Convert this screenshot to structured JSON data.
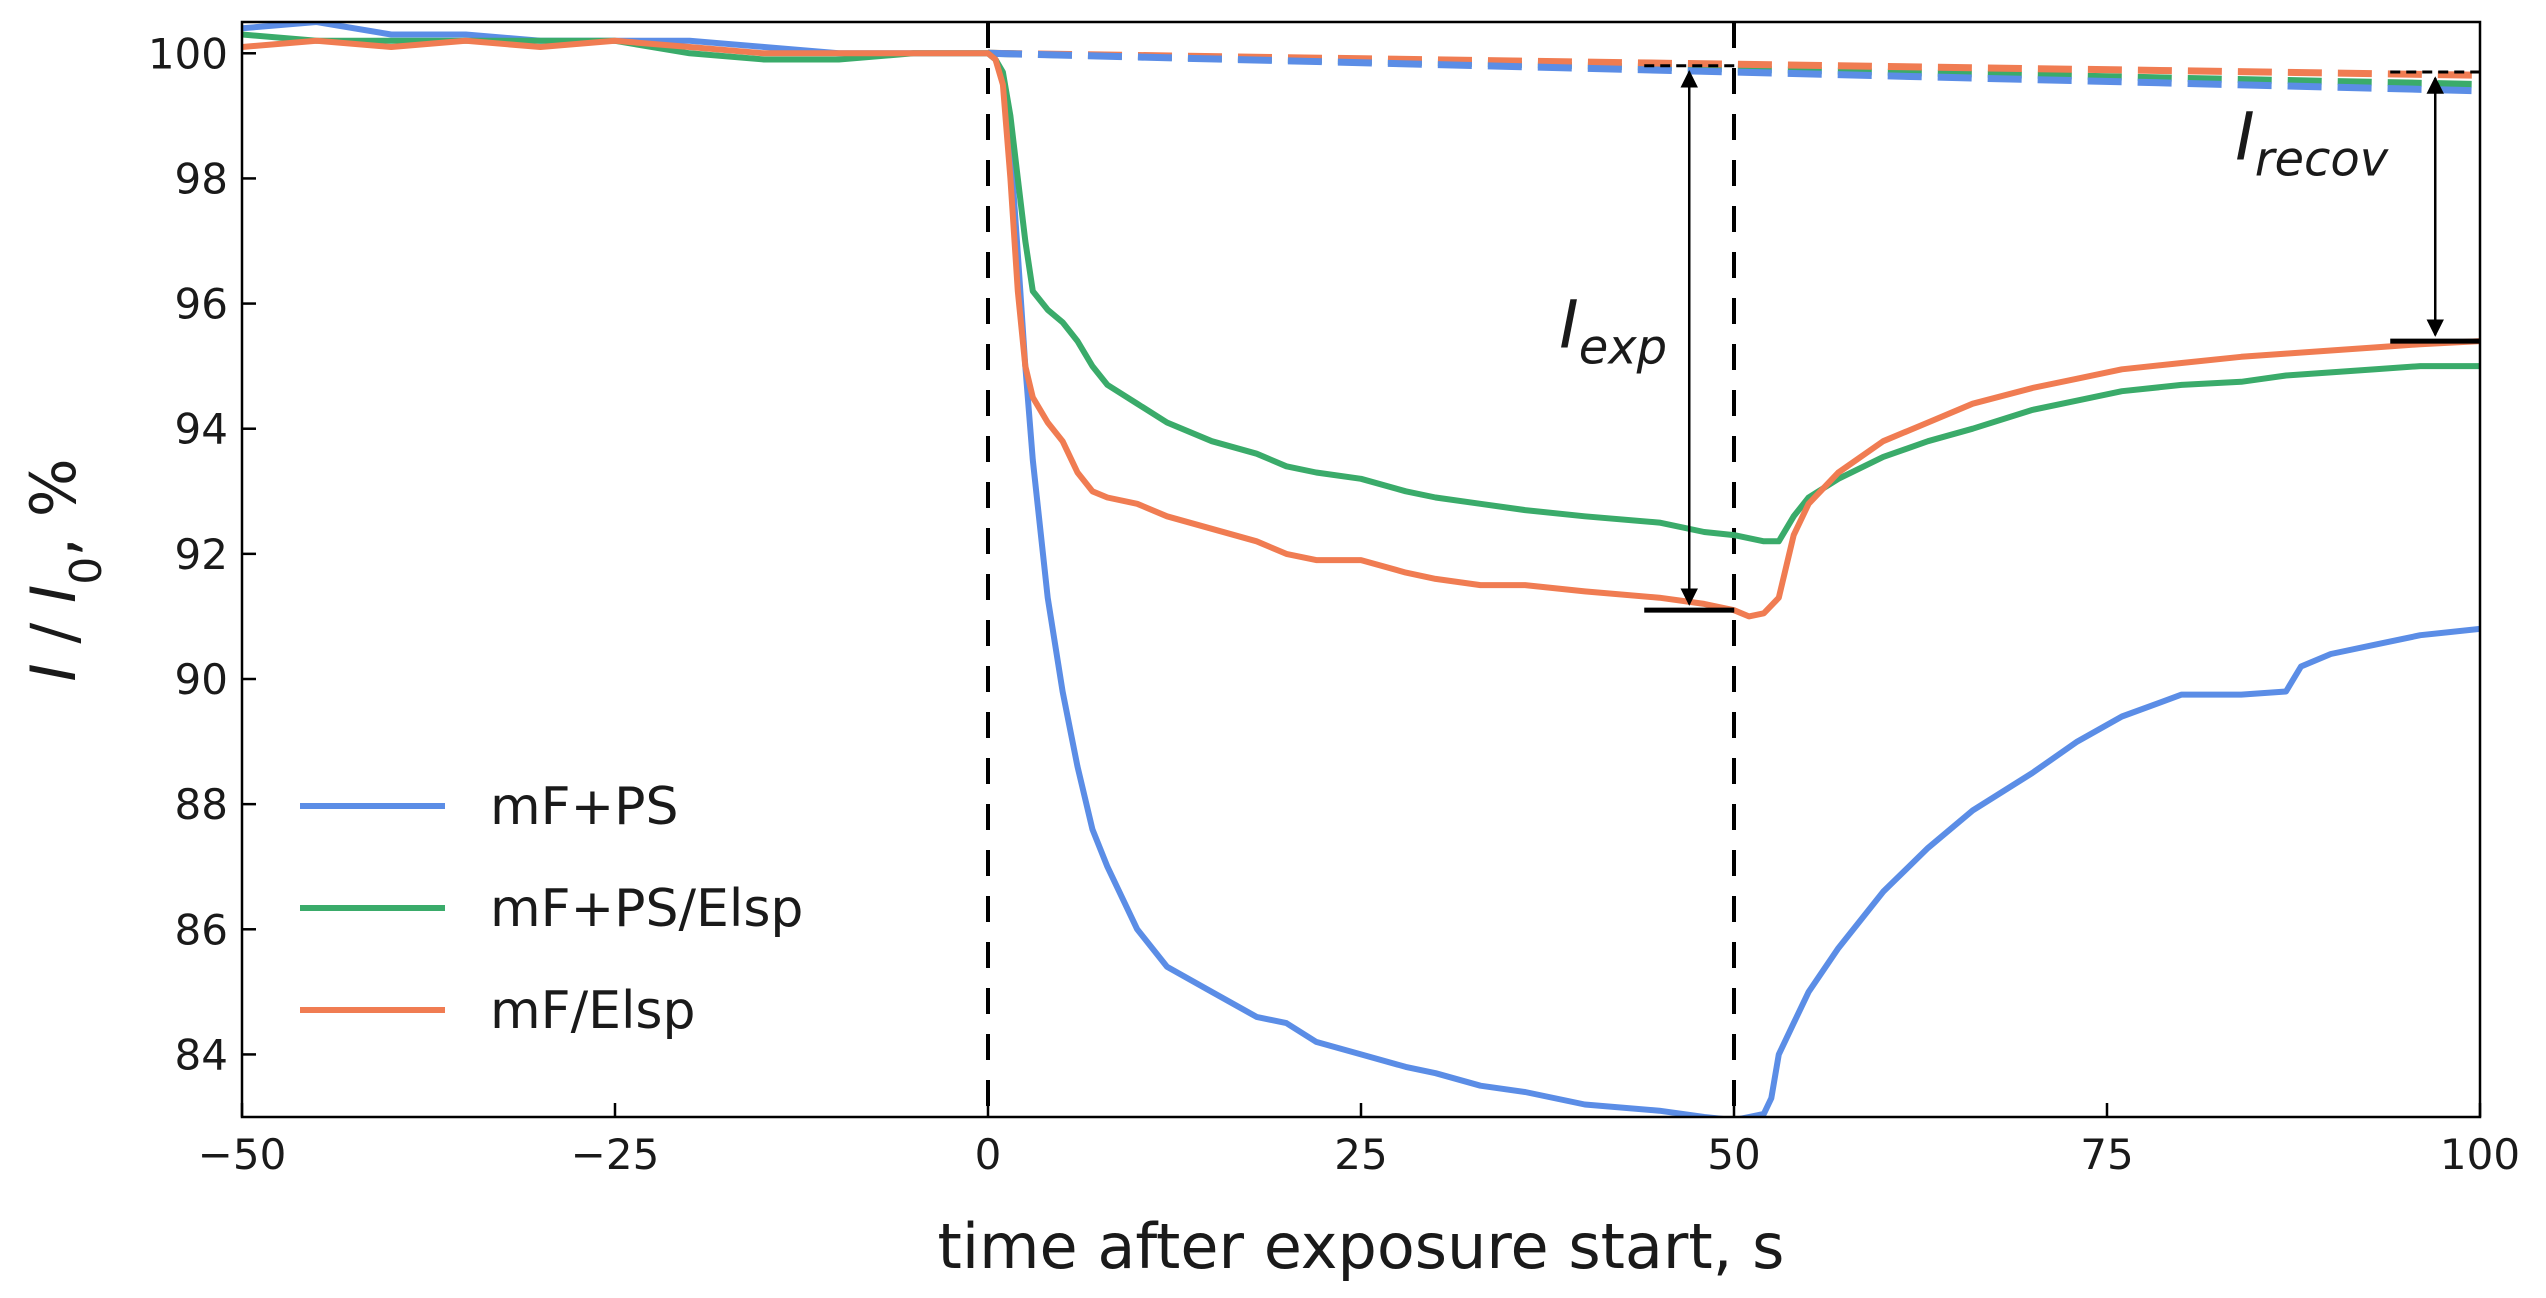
{
  "chart_data": {
    "type": "line",
    "title": "",
    "xlabel": "time after exposure start, s",
    "ylabel_parts": [
      "I",
      " / ",
      "I",
      "0",
      ", %"
    ],
    "xlim": [
      -50,
      100
    ],
    "ylim": [
      83,
      100.5
    ],
    "xticks": [
      -50,
      -25,
      0,
      25,
      50,
      75,
      100
    ],
    "xtick_labels": [
      "−50",
      "−25",
      "0",
      "25",
      "50",
      "75",
      "100"
    ],
    "yticks": [
      84,
      86,
      88,
      90,
      92,
      94,
      96,
      98,
      100
    ],
    "ytick_labels": [
      "84",
      "86",
      "88",
      "90",
      "92",
      "94",
      "96",
      "98",
      "100"
    ],
    "grid": false,
    "legend_position": "bottom-left",
    "vlines": [
      0,
      50
    ],
    "series": [
      {
        "name": "mF+PS",
        "color": "#5b8de6",
        "x": [
          -50,
          -45,
          -40,
          -35,
          -30,
          -25,
          -20,
          -15,
          -10,
          -5,
          0,
          0.5,
          1,
          1.5,
          2,
          2.5,
          3,
          4,
          5,
          6,
          7,
          8,
          10,
          12,
          15,
          18,
          20,
          22,
          25,
          28,
          30,
          33,
          36,
          40,
          45,
          48,
          50,
          51,
          52,
          52.5,
          53,
          54,
          55,
          57,
          60,
          63,
          66,
          70,
          73,
          76,
          80,
          84,
          87,
          88,
          90,
          93,
          96,
          100
        ],
        "y": [
          100.4,
          100.5,
          100.3,
          100.3,
          100.2,
          100.2,
          100.2,
          100.1,
          100.0,
          100.0,
          100.0,
          99.9,
          99.6,
          98.5,
          96.8,
          95.0,
          93.5,
          91.3,
          89.8,
          88.6,
          87.6,
          87.0,
          86.0,
          85.4,
          85.0,
          84.6,
          84.5,
          84.2,
          84.0,
          83.8,
          83.7,
          83.5,
          83.4,
          83.2,
          83.1,
          83.0,
          82.95,
          83.0,
          83.05,
          83.3,
          84.0,
          84.5,
          85.0,
          85.7,
          86.6,
          87.3,
          87.9,
          88.5,
          89.0,
          89.4,
          89.75,
          89.75,
          89.8,
          90.2,
          90.4,
          90.55,
          90.7,
          90.8
        ]
      },
      {
        "name": "mF+PS/Elsp",
        "color": "#3aab6a",
        "x": [
          -50,
          -45,
          -40,
          -35,
          -30,
          -25,
          -20,
          -15,
          -10,
          -5,
          0,
          0.5,
          1,
          1.5,
          2,
          2.5,
          3,
          4,
          5,
          6,
          7,
          8,
          10,
          12,
          15,
          18,
          20,
          22,
          25,
          28,
          30,
          33,
          36,
          40,
          45,
          48,
          50,
          51,
          52,
          53,
          54,
          55,
          57,
          60,
          63,
          66,
          70,
          73,
          76,
          80,
          84,
          87,
          90,
          93,
          96,
          100
        ],
        "y": [
          100.3,
          100.2,
          100.2,
          100.2,
          100.2,
          100.2,
          100.0,
          99.9,
          99.9,
          100.0,
          100.0,
          99.9,
          99.7,
          99.0,
          98.0,
          97.0,
          96.2,
          95.9,
          95.7,
          95.4,
          95.0,
          94.7,
          94.4,
          94.1,
          93.8,
          93.6,
          93.4,
          93.3,
          93.2,
          93.0,
          92.9,
          92.8,
          92.7,
          92.6,
          92.5,
          92.35,
          92.3,
          92.25,
          92.2,
          92.2,
          92.6,
          92.9,
          93.2,
          93.55,
          93.8,
          94.0,
          94.3,
          94.45,
          94.6,
          94.7,
          94.75,
          94.85,
          94.9,
          94.95,
          95.0,
          95.0
        ]
      },
      {
        "name": "mF/Elsp",
        "color": "#f07c52",
        "x": [
          -50,
          -45,
          -40,
          -35,
          -30,
          -25,
          -20,
          -15,
          -10,
          -5,
          0,
          0.5,
          1,
          1.5,
          2,
          2.5,
          3,
          4,
          5,
          6,
          7,
          8,
          10,
          12,
          15,
          18,
          20,
          22,
          25,
          28,
          30,
          33,
          36,
          40,
          45,
          48,
          50,
          51,
          52,
          53,
          54,
          55,
          57,
          60,
          63,
          66,
          70,
          73,
          76,
          80,
          84,
          87,
          90,
          93,
          96,
          100
        ],
        "y": [
          100.1,
          100.2,
          100.1,
          100.2,
          100.1,
          100.2,
          100.1,
          100.0,
          100.0,
          100.0,
          100.0,
          99.9,
          99.5,
          98.0,
          96.2,
          95.0,
          94.5,
          94.1,
          93.8,
          93.3,
          93.0,
          92.9,
          92.8,
          92.6,
          92.4,
          92.2,
          92.0,
          91.9,
          91.9,
          91.7,
          91.6,
          91.5,
          91.5,
          91.4,
          91.3,
          91.2,
          91.1,
          91.0,
          91.05,
          91.3,
          92.3,
          92.8,
          93.3,
          93.8,
          94.1,
          94.4,
          94.65,
          94.8,
          94.95,
          95.05,
          95.15,
          95.2,
          95.25,
          95.3,
          95.35,
          95.4
        ]
      }
    ],
    "baselines": [
      {
        "series": "mF+PS/Elsp",
        "color": "#3aab6a",
        "x": [
          0,
          100
        ],
        "y": [
          100.0,
          99.5
        ]
      },
      {
        "series": "mF/Elsp",
        "color": "#f07c52",
        "x": [
          0,
          100
        ],
        "y": [
          100.0,
          99.65
        ]
      },
      {
        "series": "mF+PS",
        "color": "#5b8de6",
        "x": [
          0,
          100
        ],
        "y": [
          100.0,
          99.4
        ]
      }
    ],
    "annotations": [
      {
        "name": "I_exp",
        "label_main": "I",
        "label_sub": "exp",
        "x": 47,
        "y_from": 99.8,
        "y_to": 91.1
      },
      {
        "name": "I_recov",
        "label_main": "I",
        "label_sub": "recov",
        "x": 97,
        "y_from": 99.7,
        "y_to": 95.4
      }
    ]
  }
}
